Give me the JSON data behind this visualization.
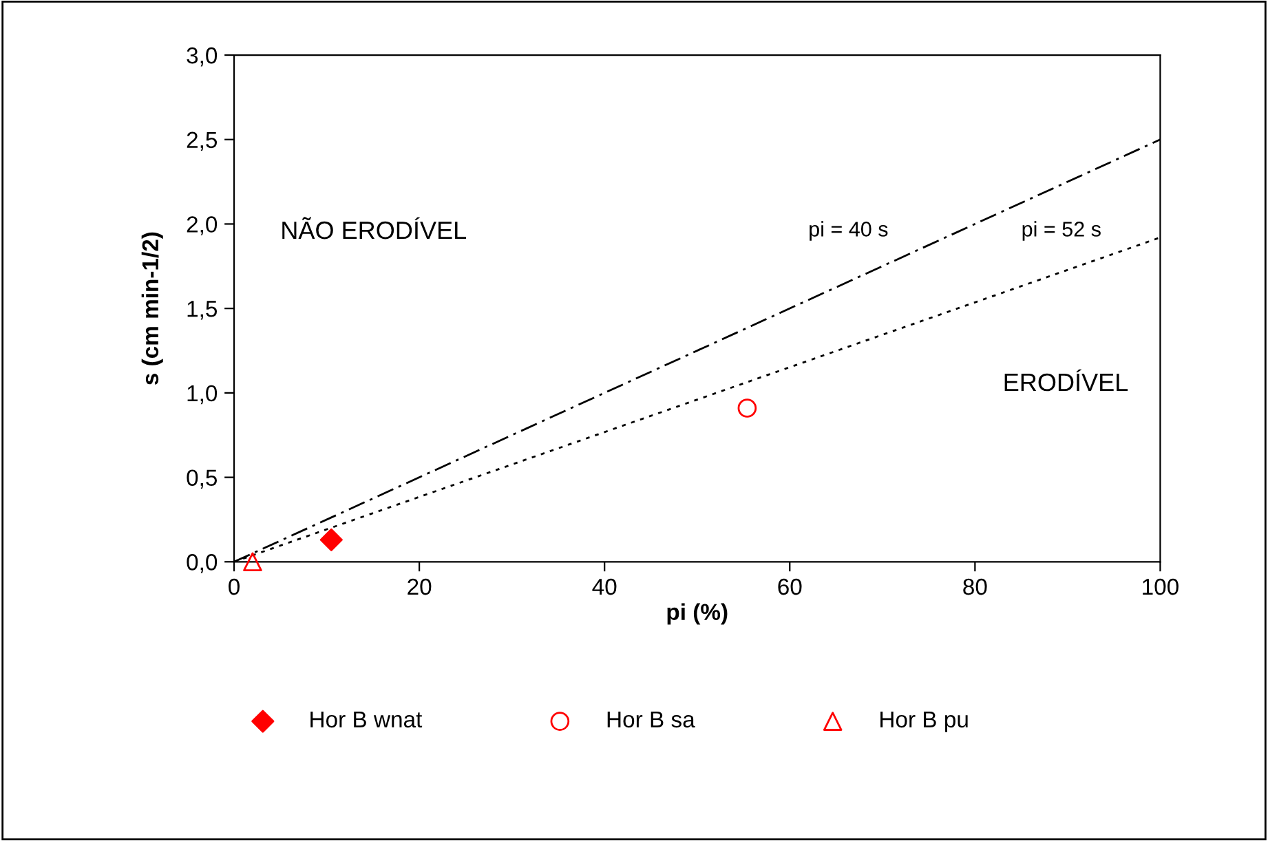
{
  "chart_data": {
    "type": "scatter",
    "xlabel": "pi (%)",
    "ylabel": "s (cm min-1/2)",
    "xlim": [
      0,
      100
    ],
    "ylim": [
      0,
      3
    ],
    "xticks": [
      0,
      20,
      40,
      60,
      80,
      100
    ],
    "yticks": [
      {
        "value": 0,
        "label": "0,0"
      },
      {
        "value": 0.5,
        "label": "0,5"
      },
      {
        "value": 1,
        "label": "1,0"
      },
      {
        "value": 1.5,
        "label": "1,5"
      },
      {
        "value": 2,
        "label": "2,0"
      },
      {
        "value": 2.5,
        "label": "2,5"
      },
      {
        "value": 3,
        "label": "3,0"
      }
    ],
    "grid": false,
    "legend": "bottom",
    "series": [
      {
        "type": "line",
        "x": [
          0,
          100
        ],
        "values": [
          0,
          2.5
        ],
        "color": "#000000",
        "line_style": "dashed",
        "marker": "none"
      },
      {
        "type": "line",
        "x": [
          0,
          100
        ],
        "values": [
          0,
          1.92
        ],
        "color": "#000000",
        "line_style": "dotted",
        "marker": "none"
      },
      {
        "name": "Hor B wnat",
        "x": [
          10.5
        ],
        "values": [
          0.13
        ],
        "color": "#ff0000",
        "marker": "diamond"
      },
      {
        "name": "Hor B sa",
        "x": [
          55.4
        ],
        "values": [
          0.91
        ],
        "color": "#ff0000",
        "marker": "circle"
      },
      {
        "name": "Hor B pu",
        "x": [
          2
        ],
        "values": [
          0
        ],
        "color": "#ff0000",
        "marker": "triangle"
      }
    ],
    "annotations": [
      "NÃO ERODÍVEL",
      "ERODÍVEL",
      "pi = 40 s",
      "pi = 52 s"
    ]
  }
}
